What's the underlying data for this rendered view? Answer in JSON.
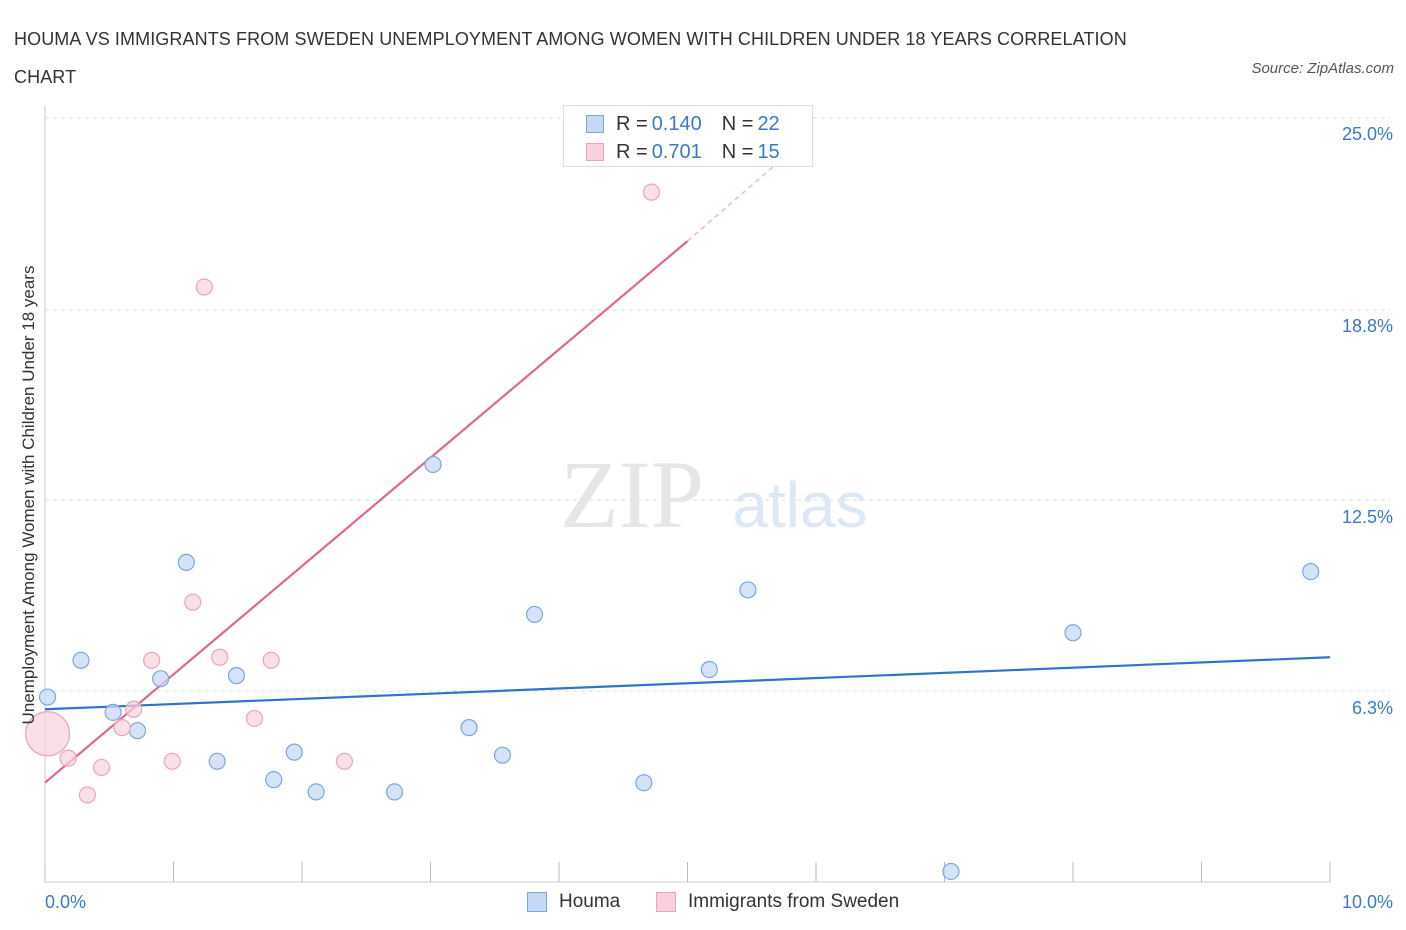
{
  "title": "HOUMA VS IMMIGRANTS FROM SWEDEN UNEMPLOYMENT AMONG WOMEN WITH CHILDREN UNDER 18 YEARS CORRELATION CHART",
  "source": "Source: ZipAtlas.com",
  "watermark": {
    "zip": "ZIP",
    "atlas": "atlas"
  },
  "legend": {
    "rows": [
      {
        "r_label": "R = ",
        "r_value": "0.140",
        "n_label": "N = ",
        "n_value": "22"
      },
      {
        "r_label": "R = ",
        "r_value": "0.701",
        "n_label": "N = ",
        "n_value": "15"
      }
    ]
  },
  "colors": {
    "houma_fill": "#c5d9f5",
    "houma_stroke": "#7aa7e0",
    "houma_line": "#2f74c8",
    "sweden_fill": "#f9d1dc",
    "sweden_stroke": "#eba5b9",
    "sweden_line": "#e0668c",
    "axis_text": "#3a78c9",
    "grid": "#dddddd"
  },
  "chart_data": {
    "type": "scatter",
    "title": "HOUMA VS IMMIGRANTS FROM SWEDEN UNEMPLOYMENT AMONG WOMEN WITH CHILDREN UNDER 18 YEARS CORRELATION CHART",
    "xlabel": "",
    "ylabel": "Unemployment Among Women with Children Under 18 years",
    "xlim": [
      0,
      10
    ],
    "ylim": [
      0,
      25.0
    ],
    "x_tick_labels": [
      "0.0%",
      "10.0%"
    ],
    "y_ticks": [
      6.3,
      12.5,
      18.8,
      25.0
    ],
    "y_tick_labels": [
      "6.3%",
      "12.5%",
      "18.8%",
      "25.0%"
    ],
    "series": [
      {
        "name": "Houma",
        "points": [
          {
            "x": 0.02,
            "y": 6.6
          },
          {
            "x": 0.28,
            "y": 7.8
          },
          {
            "x": 0.53,
            "y": 6.1
          },
          {
            "x": 0.72,
            "y": 5.5
          },
          {
            "x": 0.9,
            "y": 7.2
          },
          {
            "x": 1.1,
            "y": 11.0
          },
          {
            "x": 1.34,
            "y": 4.5
          },
          {
            "x": 1.49,
            "y": 7.3
          },
          {
            "x": 1.78,
            "y": 3.9
          },
          {
            "x": 1.94,
            "y": 4.8
          },
          {
            "x": 2.11,
            "y": 3.5
          },
          {
            "x": 2.72,
            "y": 3.5
          },
          {
            "x": 3.02,
            "y": 14.2
          },
          {
            "x": 3.3,
            "y": 5.6
          },
          {
            "x": 3.56,
            "y": 4.7
          },
          {
            "x": 3.81,
            "y": 9.3
          },
          {
            "x": 4.66,
            "y": 3.8
          },
          {
            "x": 5.17,
            "y": 7.5
          },
          {
            "x": 5.47,
            "y": 10.1
          },
          {
            "x": 7.05,
            "y": 0.9
          },
          {
            "x": 8.0,
            "y": 8.7
          },
          {
            "x": 9.85,
            "y": 10.7
          }
        ],
        "trend": {
          "x0": 0,
          "y0": 6.2,
          "x1": 10,
          "y1": 7.9
        }
      },
      {
        "name": "Immigrants from Sweden",
        "points": [
          {
            "x": 0.02,
            "y": 5.4
          },
          {
            "x": 0.18,
            "y": 4.6
          },
          {
            "x": 0.33,
            "y": 3.4
          },
          {
            "x": 0.44,
            "y": 4.3
          },
          {
            "x": 0.6,
            "y": 5.6
          },
          {
            "x": 0.69,
            "y": 6.2
          },
          {
            "x": 0.83,
            "y": 7.8
          },
          {
            "x": 0.99,
            "y": 4.5
          },
          {
            "x": 1.15,
            "y": 9.7
          },
          {
            "x": 1.24,
            "y": 20.0
          },
          {
            "x": 1.36,
            "y": 7.9
          },
          {
            "x": 1.63,
            "y": 5.9
          },
          {
            "x": 1.76,
            "y": 7.8
          },
          {
            "x": 2.33,
            "y": 4.5
          },
          {
            "x": 4.72,
            "y": 23.1
          }
        ],
        "trend": {
          "x0": 0,
          "y0": 3.8,
          "x1": 5.0,
          "y1": 21.5
        },
        "trend_dashed_to": {
          "x": 5.85,
          "y": 24.6
        }
      }
    ],
    "legend_labels": [
      "Houma",
      "Immigrants from Sweden"
    ],
    "legend_position": "top-center"
  }
}
